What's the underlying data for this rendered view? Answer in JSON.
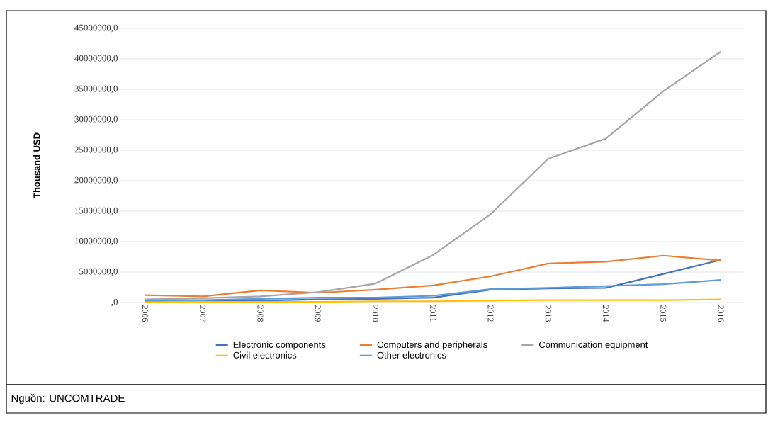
{
  "chart_data": {
    "type": "line",
    "ylabel": "Thousand USD",
    "categories": [
      "2006",
      "2007",
      "2008",
      "2009",
      "2010",
      "2011",
      "2012",
      "2013",
      "2014",
      "2015",
      "2016"
    ],
    "series": [
      {
        "name": "Electronic components",
        "color": "#4472c4",
        "values": [
          100000,
          200000,
          300000,
          500000,
          600000,
          800000,
          2100000,
          2300000,
          2400000,
          4700000,
          7000000
        ]
      },
      {
        "name": "Computers and peripherals",
        "color": "#ed7d31",
        "values": [
          1200000,
          1000000,
          2000000,
          1600000,
          2100000,
          2800000,
          4300000,
          6400000,
          6700000,
          7700000,
          6900000
        ]
      },
      {
        "name": "Communication equipment",
        "color": "#a5a5a5",
        "values": [
          500000,
          700000,
          1000000,
          1700000,
          3100000,
          7800000,
          14500000,
          23600000,
          26900000,
          34700000,
          41200000
        ]
      },
      {
        "name": "Civil electronics",
        "color": "#ffc000",
        "values": [
          100000,
          100000,
          100000,
          100000,
          200000,
          200000,
          300000,
          400000,
          400000,
          400000,
          500000
        ]
      },
      {
        "name": "Other electronics",
        "color": "#5b9bd5",
        "values": [
          300000,
          400000,
          600000,
          800000,
          800000,
          1100000,
          2200000,
          2400000,
          2700000,
          3000000,
          3700000
        ]
      }
    ],
    "ylim": [
      0,
      45000000
    ],
    "yticks": [
      {
        "value": 0,
        "label": ",0"
      },
      {
        "value": 5000000,
        "label": "5000000,0"
      },
      {
        "value": 10000000,
        "label": "10000000,0"
      },
      {
        "value": 15000000,
        "label": "15000000,0"
      },
      {
        "value": 20000000,
        "label": "20000000,0"
      },
      {
        "value": 25000000,
        "label": "25000000,0"
      },
      {
        "value": 30000000,
        "label": "30000000,0"
      },
      {
        "value": 35000000,
        "label": "35000000,0"
      },
      {
        "value": 40000000,
        "label": "40000000,0"
      },
      {
        "value": 45000000,
        "label": "45000000,0"
      }
    ],
    "grid": "y",
    "legend": "bottom",
    "line_style": "solid",
    "annotations": [
      "Nguồn: UNCOMTRADE"
    ]
  }
}
